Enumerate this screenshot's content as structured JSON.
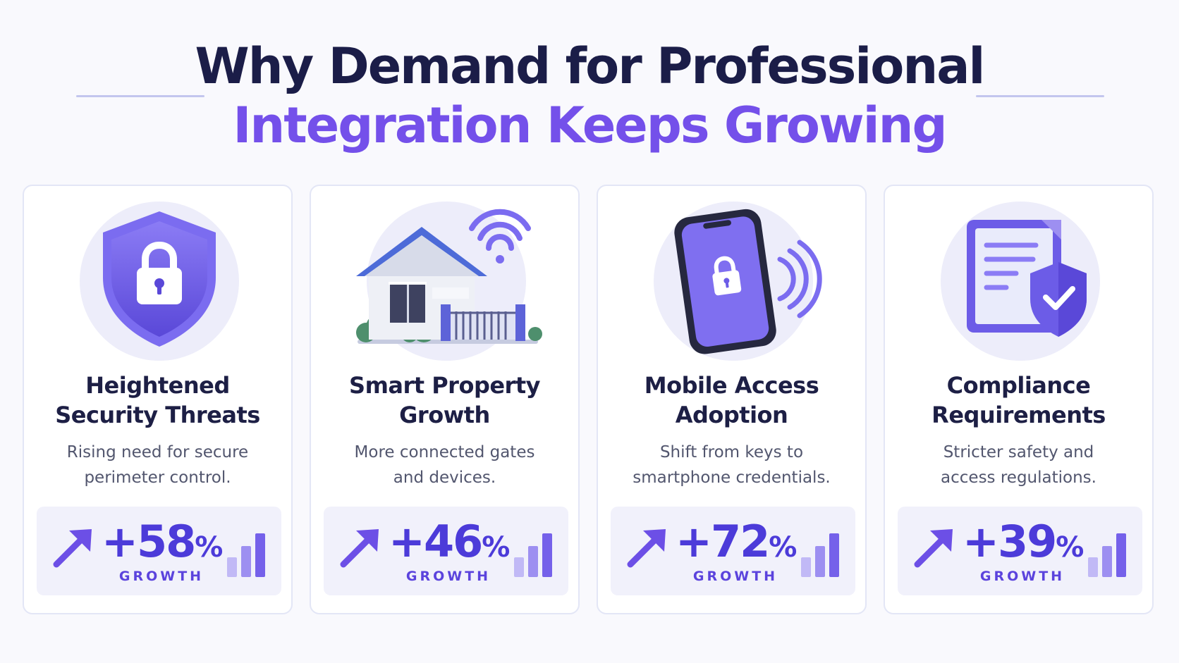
{
  "header": {
    "title_line1": "Why Demand for Professional",
    "title_line2": "Integration Keeps Growing"
  },
  "cards": [
    {
      "icon": "shield-lock-icon",
      "title_line1": "Heightened",
      "title_line2": "Security Threats",
      "desc_line1": "Rising need for secure",
      "desc_line2": "perimeter control.",
      "stat_value": "+58",
      "stat_unit": "%",
      "stat_label": "GROWTH"
    },
    {
      "icon": "smart-home-icon",
      "title_line1": "Smart Property",
      "title_line2": "Growth",
      "desc_line1": "More connected gates",
      "desc_line2": "and devices.",
      "stat_value": "+46",
      "stat_unit": "%",
      "stat_label": "GROWTH"
    },
    {
      "icon": "smartphone-lock-icon",
      "title_line1": "Mobile Access",
      "title_line2": "Adoption",
      "desc_line1": "Shift from keys to",
      "desc_line2": "smartphone credentials.",
      "stat_value": "+72",
      "stat_unit": "%",
      "stat_label": "GROWTH"
    },
    {
      "icon": "document-shield-icon",
      "title_line1": "Compliance",
      "title_line2": "Requirements",
      "desc_line1": "Stricter safety and",
      "desc_line2": "access regulations.",
      "stat_value": "+39",
      "stat_unit": "%",
      "stat_label": "GROWTH"
    }
  ],
  "colors": {
    "title_dark": "#1b1d48",
    "title_accent": "#7450ea",
    "stat_value": "#4c3bd9",
    "icon_primary": "#6c5ce7",
    "card_border": "#e3e6f6"
  }
}
